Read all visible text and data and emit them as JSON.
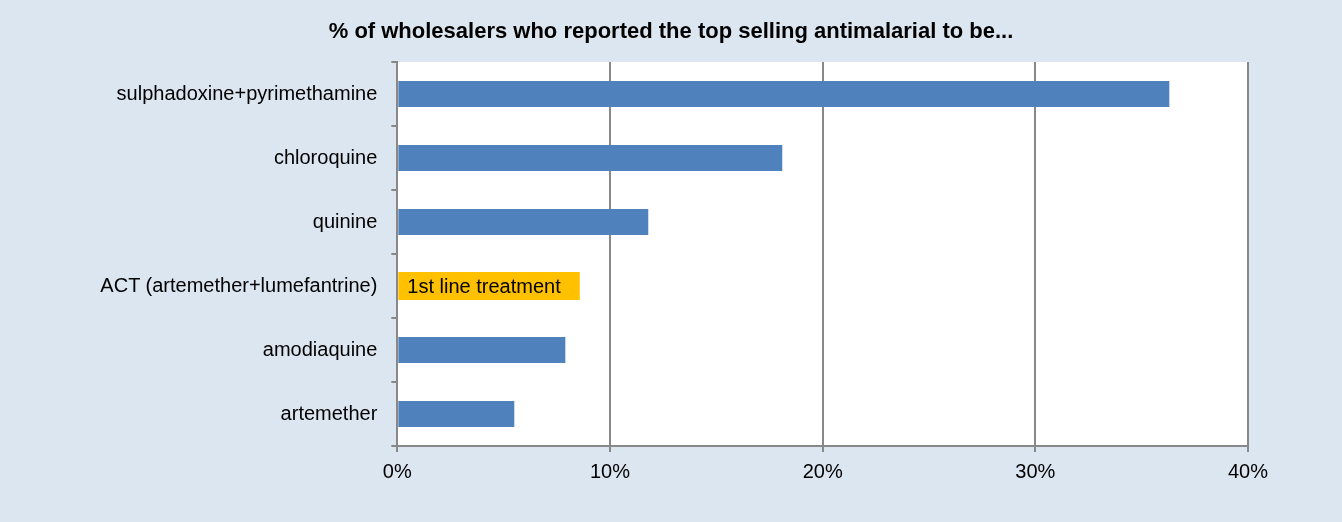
{
  "chart_data": {
    "type": "bar",
    "orientation": "horizontal",
    "title": "% of wholesalers who reported the top selling antimalarial to be...",
    "categories": [
      "sulphadoxine+pyrimethamine",
      "chloroquine",
      "quinine",
      "ACT (artemether+lumefantrine)",
      "amodiaquine",
      "artemether"
    ],
    "values": [
      36.3,
      18.1,
      11.8,
      null,
      7.9,
      5.5
    ],
    "color": "#4f81bd",
    "xlim": [
      0,
      40
    ],
    "xticks": [
      {
        "value": 0,
        "label": "0%"
      },
      {
        "value": 10,
        "label": "10%"
      },
      {
        "value": 20,
        "label": "20%"
      },
      {
        "value": 30,
        "label": "30%"
      },
      {
        "value": 40,
        "label": "40%"
      }
    ],
    "grid": "x",
    "legend": false,
    "annotations": [
      "1st line treatment"
    ]
  }
}
